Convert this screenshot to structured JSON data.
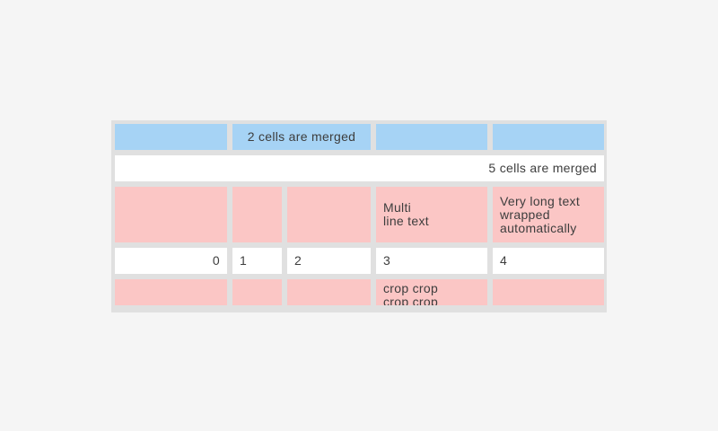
{
  "page": {
    "background_color": "#f5f5f5"
  },
  "table": {
    "colors": {
      "container": "#e0e0e0",
      "header_cell": "#a6d3f5",
      "highlight_cell": "#fbc6c5",
      "normal_cell": "#ffffff",
      "text": "#3d3d3d"
    },
    "column_count": 5,
    "rows": [
      {
        "style": "blue",
        "cells": [
          {
            "text": "",
            "col": 1
          },
          {
            "text": "2 cells are merged",
            "col": 2,
            "merge_span": 2,
            "align": "center"
          },
          {
            "text": "",
            "col": 4
          },
          {
            "text": "",
            "col": 5
          }
        ]
      },
      {
        "style": "white",
        "cells": [
          {
            "text": "5 cells are merged",
            "col": 1,
            "merge_span": 5,
            "align": "right"
          }
        ]
      },
      {
        "style": "pink",
        "cells": [
          {
            "text": "",
            "col": 1
          },
          {
            "text": "",
            "col": 2
          },
          {
            "text": "",
            "col": 3
          },
          {
            "text": "Multi\nline text",
            "col": 4
          },
          {
            "text": "Very long text wrapped automatically",
            "col": 5
          }
        ]
      },
      {
        "style": "white",
        "cells": [
          {
            "text": "0",
            "col": 1,
            "align": "right"
          },
          {
            "text": "1",
            "col": 2
          },
          {
            "text": "2",
            "col": 3
          },
          {
            "text": "3",
            "col": 4
          },
          {
            "text": "4",
            "col": 5
          }
        ]
      },
      {
        "style": "pink",
        "cells": [
          {
            "text": "",
            "col": 1
          },
          {
            "text": "",
            "col": 2
          },
          {
            "text": "",
            "col": 3
          },
          {
            "text": "crop crop crop crop",
            "col": 4,
            "cropped": true
          },
          {
            "text": "",
            "col": 5
          }
        ]
      }
    ]
  }
}
